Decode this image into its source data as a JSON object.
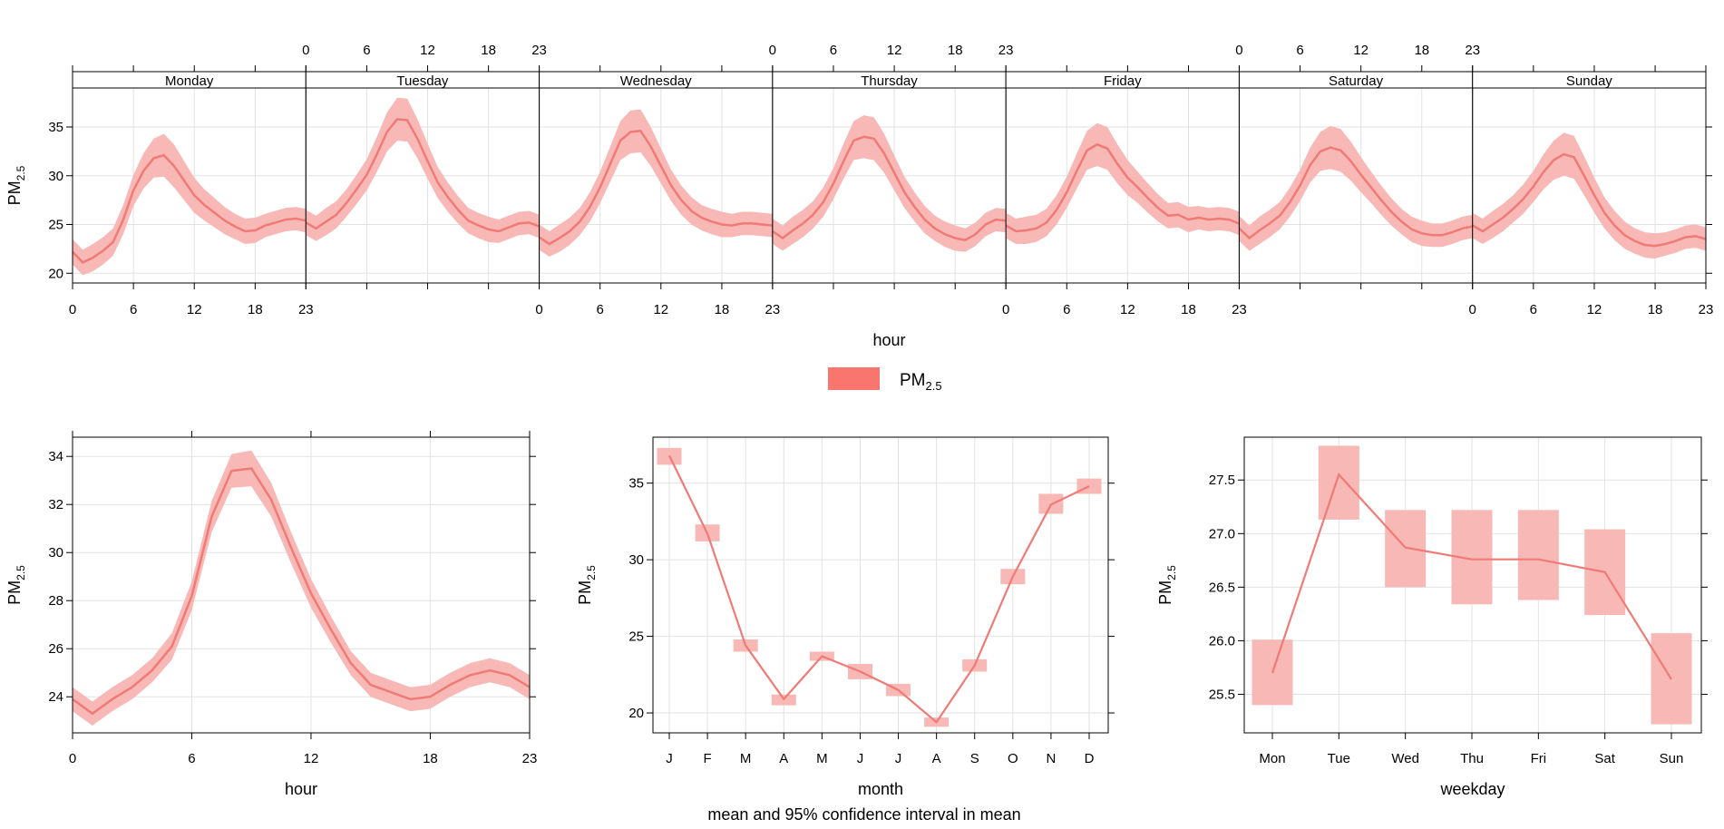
{
  "colors": {
    "line": "#f07a76",
    "band": "#f7b8b6",
    "legend": "#f8766d",
    "grid": "#e2e2e2",
    "frame": "#000000"
  },
  "legend": {
    "label": "PM",
    "sub": "2.5"
  },
  "caption": "mean and 95% confidence interval in mean",
  "chart_data": [
    {
      "id": "weekday_hour",
      "type": "line",
      "title": "",
      "xlabel": "hour",
      "ylabel": "PM",
      "ylabel_sub": "2.5",
      "ylim": [
        19,
        39
      ],
      "yticks": [
        20,
        25,
        30,
        35
      ],
      "xticks": [
        0,
        6,
        12,
        18,
        23
      ],
      "x": [
        0,
        1,
        2,
        3,
        4,
        5,
        6,
        7,
        8,
        9,
        10,
        11,
        12,
        13,
        14,
        15,
        16,
        17,
        18,
        19,
        20,
        21,
        22,
        23
      ],
      "panels": [
        "Monday",
        "Tuesday",
        "Wednesday",
        "Thursday",
        "Friday",
        "Saturday",
        "Sunday"
      ],
      "series": [
        {
          "name": "Monday",
          "values": [
            22.2,
            21.1,
            21.6,
            22.3,
            23.2,
            25.5,
            28.5,
            30.5,
            31.8,
            32.1,
            31.0,
            29.5,
            28.0,
            27.0,
            26.2,
            25.4,
            24.8,
            24.3,
            24.4,
            24.9,
            25.2,
            25.5,
            25.6,
            25.4
          ]
        },
        {
          "name": "Tuesday",
          "values": [
            25.2,
            24.6,
            25.3,
            26.0,
            27.2,
            28.6,
            30.1,
            32.2,
            34.5,
            35.8,
            35.7,
            33.8,
            31.5,
            29.3,
            27.8,
            26.5,
            25.4,
            24.9,
            24.5,
            24.3,
            24.7,
            25.1,
            25.2,
            24.8
          ]
        },
        {
          "name": "Wednesday",
          "values": [
            23.7,
            23.0,
            23.6,
            24.3,
            25.3,
            26.8,
            28.8,
            31.2,
            33.6,
            34.5,
            34.6,
            33.0,
            31.0,
            29.0,
            27.5,
            26.4,
            25.7,
            25.3,
            25.0,
            24.9,
            25.1,
            25.1,
            25.0,
            24.9
          ]
        },
        {
          "name": "Thursday",
          "values": [
            24.3,
            23.6,
            24.4,
            25.1,
            26.0,
            27.3,
            29.2,
            31.5,
            33.6,
            34.0,
            33.8,
            32.3,
            30.3,
            28.3,
            26.8,
            25.5,
            24.6,
            24.0,
            23.6,
            23.4,
            24.0,
            25.0,
            25.5,
            25.4
          ]
        },
        {
          "name": "Friday",
          "values": [
            24.9,
            24.3,
            24.4,
            24.6,
            25.2,
            26.5,
            28.3,
            30.5,
            32.6,
            33.2,
            32.8,
            31.2,
            29.8,
            28.8,
            27.7,
            26.7,
            25.9,
            26.0,
            25.5,
            25.7,
            25.5,
            25.6,
            25.5,
            25.1
          ]
        },
        {
          "name": "Saturday",
          "values": [
            24.6,
            23.6,
            24.4,
            25.1,
            25.9,
            27.3,
            29.0,
            31.1,
            32.5,
            32.9,
            32.6,
            31.5,
            30.1,
            28.8,
            27.5,
            26.3,
            25.3,
            24.5,
            24.1,
            23.9,
            23.9,
            24.2,
            24.6,
            24.8
          ]
        },
        {
          "name": "Sunday",
          "values": [
            24.9,
            24.3,
            25.0,
            25.7,
            26.6,
            27.6,
            28.9,
            30.4,
            31.6,
            32.2,
            31.9,
            30.0,
            28.0,
            26.2,
            24.9,
            23.9,
            23.3,
            22.9,
            22.8,
            23.0,
            23.3,
            23.7,
            23.8,
            23.5
          ]
        }
      ],
      "band_halfwidth": [
        1.3,
        1.3,
        1.4,
        1.4,
        1.4,
        1.5,
        1.6,
        1.8,
        2.0,
        2.2,
        2.2,
        2.0,
        1.8,
        1.6,
        1.5,
        1.4,
        1.3,
        1.3,
        1.3,
        1.2,
        1.2,
        1.2,
        1.2,
        1.2
      ]
    },
    {
      "id": "hour",
      "type": "line",
      "xlabel": "hour",
      "ylabel": "PM",
      "ylabel_sub": "2.5",
      "xlim": [
        0,
        23
      ],
      "ylim": [
        22.5,
        34.8
      ],
      "xticks": [
        0,
        6,
        12,
        18,
        23
      ],
      "yticks": [
        24,
        26,
        28,
        30,
        32,
        34
      ],
      "x": [
        0,
        1,
        2,
        3,
        4,
        5,
        6,
        7,
        8,
        9,
        10,
        11,
        12,
        13,
        14,
        15,
        16,
        17,
        18,
        19,
        20,
        21,
        22,
        23
      ],
      "values": [
        23.9,
        23.3,
        23.9,
        24.4,
        25.1,
        26.1,
        28.2,
        31.5,
        33.4,
        33.5,
        32.2,
        30.2,
        28.3,
        26.8,
        25.4,
        24.5,
        24.2,
        23.9,
        24.0,
        24.5,
        24.9,
        25.1,
        24.9,
        24.4
      ],
      "band_halfwidth": [
        0.5,
        0.5,
        0.5,
        0.5,
        0.5,
        0.55,
        0.6,
        0.65,
        0.7,
        0.75,
        0.7,
        0.65,
        0.6,
        0.55,
        0.5,
        0.5,
        0.5,
        0.5,
        0.5,
        0.5,
        0.5,
        0.5,
        0.5,
        0.5
      ]
    },
    {
      "id": "month",
      "type": "line",
      "xlabel": "month",
      "ylabel": "PM",
      "ylabel_sub": "2.5",
      "ylim": [
        18.7,
        38
      ],
      "yticks": [
        20,
        25,
        30,
        35
      ],
      "categories": [
        "J",
        "F",
        "M",
        "A",
        "M",
        "J",
        "J",
        "A",
        "S",
        "O",
        "N",
        "D"
      ],
      "values": [
        36.8,
        31.7,
        24.4,
        20.9,
        23.7,
        22.7,
        21.5,
        19.4,
        23.1,
        28.9,
        33.6,
        34.8
      ],
      "lower": [
        36.2,
        31.2,
        24.0,
        20.5,
        23.4,
        22.2,
        21.1,
        19.1,
        22.7,
        28.4,
        33.0,
        34.3
      ],
      "upper": [
        37.3,
        32.3,
        24.8,
        21.2,
        24.0,
        23.2,
        21.9,
        19.7,
        23.5,
        29.4,
        34.3,
        35.3
      ]
    },
    {
      "id": "weekday",
      "type": "line",
      "xlabel": "weekday",
      "ylabel": "PM",
      "ylabel_sub": "2.5",
      "ylim": [
        25.14,
        27.9
      ],
      "yticks": [
        25.5,
        26.0,
        26.5,
        27.0,
        27.5
      ],
      "ytick_labels": [
        "25.5",
        "26.0",
        "26.5",
        "27.0",
        "27.5"
      ],
      "categories": [
        "Mon",
        "Tue",
        "Wed",
        "Thu",
        "Fri",
        "Sat",
        "Sun"
      ],
      "values": [
        25.7,
        27.55,
        26.87,
        26.76,
        26.76,
        26.64,
        25.64
      ],
      "lower": [
        25.4,
        27.13,
        26.5,
        26.34,
        26.38,
        26.24,
        25.22
      ],
      "upper": [
        26.01,
        27.82,
        27.22,
        27.22,
        27.22,
        27.04,
        26.07
      ]
    }
  ]
}
